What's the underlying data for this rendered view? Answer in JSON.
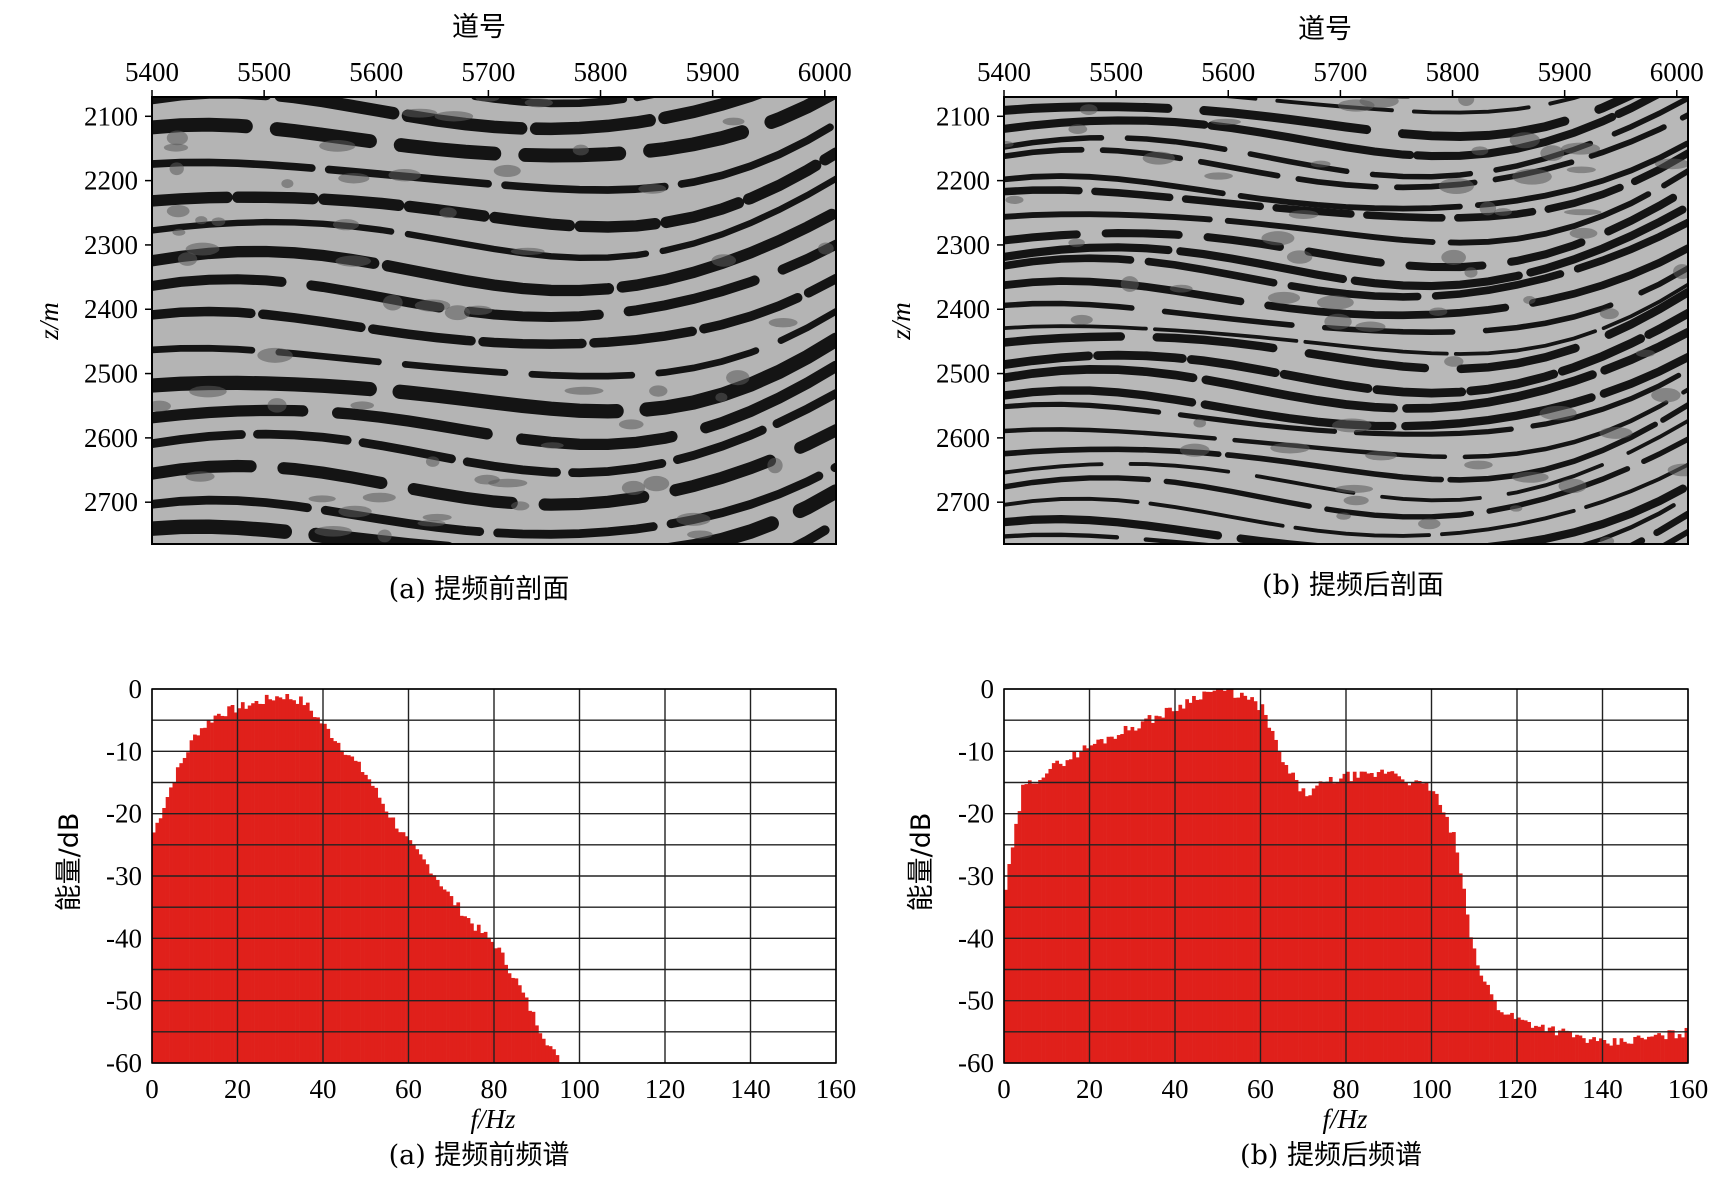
{
  "chart_data": [
    {
      "id": "section-a",
      "type": "heatmap",
      "caption": "(a)  提频前剖面",
      "xlabel": "道号",
      "ylabel": "z/m",
      "xlim": [
        5400,
        6010
      ],
      "ylim": [
        2070,
        2765
      ],
      "x_ticks": [
        "5400",
        "5500",
        "5600",
        "5700",
        "5800",
        "5900",
        "6000"
      ],
      "y_ticks": [
        "2100",
        "2200",
        "2300",
        "2400",
        "2500",
        "2600",
        "2700"
      ],
      "colors": {
        "background": "#b4b4b4",
        "reflector": "#141414"
      }
    },
    {
      "id": "section-b",
      "type": "heatmap",
      "caption": "(b)  提频后剖面",
      "xlabel": "道号",
      "ylabel": "z/m",
      "xlim": [
        5400,
        6010
      ],
      "ylim": [
        2070,
        2765
      ],
      "x_ticks": [
        "5400",
        "5500",
        "5600",
        "5700",
        "5800",
        "5900",
        "6000"
      ],
      "y_ticks": [
        "2100",
        "2200",
        "2300",
        "2400",
        "2500",
        "2600",
        "2700"
      ],
      "colors": {
        "background": "#b8b8b8",
        "reflector": "#141414"
      }
    },
    {
      "id": "spectrum-a",
      "type": "bar",
      "caption": "(a)  提频前频谱",
      "xlabel": "f/Hz",
      "ylabel": "能量/dB",
      "xlim": [
        0,
        160
      ],
      "ylim": [
        -60,
        0
      ],
      "x_ticks": [
        "0",
        "20",
        "40",
        "60",
        "80",
        "100",
        "120",
        "140",
        "160"
      ],
      "y_ticks": [
        "0",
        "-10",
        "-20",
        "-30",
        "-40",
        "-50",
        "-60"
      ],
      "grid": true,
      "bar_color": "#e0201b",
      "series": [
        {
          "x": [
            0,
            5,
            10,
            15,
            20,
            25,
            30,
            35,
            40,
            45,
            50,
            55,
            60,
            65,
            70,
            75,
            80,
            85,
            90,
            95
          ],
          "values": [
            -23,
            -14,
            -7,
            -4,
            -3,
            -2,
            -1,
            -2,
            -6,
            -10,
            -14,
            -20,
            -25,
            -29,
            -34,
            -38,
            -41,
            -47,
            -54,
            -60
          ]
        }
      ]
    },
    {
      "id": "spectrum-b",
      "type": "bar",
      "caption": "(b)  提频后频谱",
      "xlabel": "f/Hz",
      "ylabel": "能量/dB",
      "xlim": [
        0,
        160
      ],
      "ylim": [
        -60,
        0
      ],
      "x_ticks": [
        "0",
        "20",
        "40",
        "60",
        "80",
        "100",
        "120",
        "140",
        "160"
      ],
      "y_ticks": [
        "0",
        "-10",
        "-20",
        "-30",
        "-40",
        "-50",
        "-60"
      ],
      "grid": true,
      "bar_color": "#e0201b",
      "series": [
        {
          "x": [
            0,
            4,
            10,
            20,
            30,
            40,
            45,
            50,
            55,
            60,
            65,
            70,
            75,
            80,
            85,
            90,
            95,
            100,
            105,
            110,
            115,
            120,
            130,
            140,
            150,
            160
          ],
          "values": [
            -32,
            -16,
            -13,
            -9,
            -6,
            -3,
            -1,
            0,
            -1,
            -3,
            -12,
            -17,
            -15,
            -14,
            -14,
            -13,
            -15,
            -16,
            -24,
            -44,
            -51,
            -53,
            -55,
            -57,
            -56,
            -55
          ]
        }
      ]
    }
  ]
}
